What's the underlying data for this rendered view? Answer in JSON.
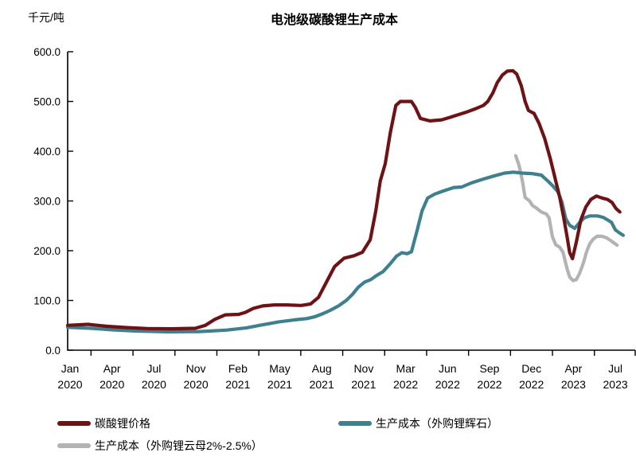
{
  "chart_data": {
    "type": "line",
    "title": "电池级碳酸锂生产成本",
    "ylabel": "千元/吨",
    "xlabel": "",
    "ylim": [
      0,
      600
    ],
    "y_ticks": [
      0,
      100,
      200,
      300,
      400,
      500,
      600
    ],
    "grid": false,
    "legend_position": "bottom",
    "x_ticks": [
      {
        "month": "Jan",
        "year": "2020"
      },
      {
        "month": "Apr",
        "year": "2020"
      },
      {
        "month": "Jul",
        "year": "2020"
      },
      {
        "month": "Nov",
        "year": "2020"
      },
      {
        "month": "Feb",
        "year": "2021"
      },
      {
        "month": "May",
        "year": "2021"
      },
      {
        "month": "Aug",
        "year": "2021"
      },
      {
        "month": "Nov",
        "year": "2021"
      },
      {
        "month": "Mar",
        "year": "2022"
      },
      {
        "month": "Jun",
        "year": "2022"
      },
      {
        "month": "Sep",
        "year": "2022"
      },
      {
        "month": "Dec",
        "year": "2022"
      },
      {
        "month": "Apr",
        "year": "2023"
      },
      {
        "month": "Jul",
        "year": "2023"
      }
    ],
    "points_format": "[x_percent_along_time_axis_Jan2020_to_Jul2023, value_kCNY_per_ton]",
    "series": [
      {
        "name": "碳酸锂价格",
        "color": "#6E1315",
        "points": [
          [
            0,
            50
          ],
          [
            3.6,
            52
          ],
          [
            7.1,
            48
          ],
          [
            10.7,
            45.5
          ],
          [
            14.3,
            43.5
          ],
          [
            18.6,
            43
          ],
          [
            22.9,
            44
          ],
          [
            24.7,
            50
          ],
          [
            26.4,
            62
          ],
          [
            28.3,
            71
          ],
          [
            30.7,
            72
          ],
          [
            31.9,
            76
          ],
          [
            33.3,
            84
          ],
          [
            35,
            89
          ],
          [
            37.1,
            91
          ],
          [
            39.3,
            91
          ],
          [
            41.9,
            90
          ],
          [
            43.6,
            93
          ],
          [
            45,
            106
          ],
          [
            46.4,
            136
          ],
          [
            47.9,
            168
          ],
          [
            49.6,
            185
          ],
          [
            51.4,
            190
          ],
          [
            52.9,
            197
          ],
          [
            54.3,
            222
          ],
          [
            55.3,
            280
          ],
          [
            56.1,
            340
          ],
          [
            57,
            375
          ],
          [
            57.9,
            437
          ],
          [
            58.9,
            492
          ],
          [
            59.7,
            500
          ],
          [
            61.7,
            500
          ],
          [
            62.4,
            488
          ],
          [
            63.3,
            466
          ],
          [
            65,
            461
          ],
          [
            67.1,
            463
          ],
          [
            68.6,
            468
          ],
          [
            69.7,
            472
          ],
          [
            71.4,
            478
          ],
          [
            73.1,
            485
          ],
          [
            74.6,
            492
          ],
          [
            75.4,
            500
          ],
          [
            76.3,
            517
          ],
          [
            77.1,
            538
          ],
          [
            78,
            553
          ],
          [
            78.9,
            561
          ],
          [
            79.9,
            562
          ],
          [
            80.6,
            555
          ],
          [
            81.4,
            532
          ],
          [
            82.1,
            500
          ],
          [
            82.7,
            482
          ],
          [
            83.7,
            476
          ],
          [
            84.6,
            456
          ],
          [
            85.6,
            426
          ],
          [
            86.6,
            386
          ],
          [
            87.6,
            340
          ],
          [
            88.3,
            308
          ],
          [
            89,
            268
          ],
          [
            89.6,
            230
          ],
          [
            90.1,
            196
          ],
          [
            90.6,
            184
          ],
          [
            91.3,
            218
          ],
          [
            92.1,
            262
          ],
          [
            93,
            288
          ],
          [
            93.9,
            303
          ],
          [
            94.9,
            310
          ],
          [
            95.9,
            306
          ],
          [
            96.9,
            303
          ],
          [
            97.7,
            297
          ],
          [
            98.4,
            285
          ],
          [
            99.1,
            278
          ]
        ]
      },
      {
        "name": "生产成本（外购锂辉石）",
        "color": "#3F808F",
        "points": [
          [
            0,
            46
          ],
          [
            4.3,
            44
          ],
          [
            7.9,
            41
          ],
          [
            12.1,
            38.5
          ],
          [
            17.9,
            37
          ],
          [
            23.6,
            37.5
          ],
          [
            25.7,
            38.5
          ],
          [
            28.6,
            40.5
          ],
          [
            32.1,
            45
          ],
          [
            35,
            51
          ],
          [
            37.9,
            57
          ],
          [
            40.7,
            61
          ],
          [
            42.9,
            63.5
          ],
          [
            44.3,
            67
          ],
          [
            45.7,
            73
          ],
          [
            47.1,
            80
          ],
          [
            48.6,
            89
          ],
          [
            50,
            100
          ],
          [
            51.1,
            112
          ],
          [
            52.1,
            126
          ],
          [
            53.3,
            137
          ],
          [
            54.4,
            142
          ],
          [
            55.4,
            150
          ],
          [
            56.6,
            158
          ],
          [
            57.9,
            174
          ],
          [
            59,
            189
          ],
          [
            60,
            196
          ],
          [
            60.9,
            194
          ],
          [
            61.7,
            198
          ],
          [
            62.7,
            240
          ],
          [
            63.6,
            280
          ],
          [
            64.6,
            306
          ],
          [
            65.9,
            314
          ],
          [
            67.4,
            320
          ],
          [
            69.3,
            327
          ],
          [
            70.7,
            328
          ],
          [
            72.4,
            336
          ],
          [
            74.3,
            343
          ],
          [
            76.4,
            350
          ],
          [
            78.4,
            356
          ],
          [
            80,
            358
          ],
          [
            81.6,
            356
          ],
          [
            83.3,
            355
          ],
          [
            85,
            352
          ],
          [
            86.1,
            341
          ],
          [
            87.1,
            330
          ],
          [
            88,
            318
          ],
          [
            88.7,
            298
          ],
          [
            89.4,
            264
          ],
          [
            90.1,
            251
          ],
          [
            91,
            245
          ],
          [
            91.9,
            257
          ],
          [
            92.7,
            266
          ],
          [
            93.7,
            270
          ],
          [
            95.1,
            270
          ],
          [
            96.1,
            267
          ],
          [
            96.9,
            262
          ],
          [
            97.6,
            257
          ],
          [
            98.3,
            242
          ],
          [
            99,
            236
          ],
          [
            99.7,
            231
          ]
        ]
      },
      {
        "name": "生产成本（外购锂云母2%-2.5%）",
        "color": "#B3B3B3",
        "points": [
          [
            80.4,
            391
          ],
          [
            81,
            372
          ],
          [
            81.6,
            341
          ],
          [
            82.1,
            307
          ],
          [
            82.9,
            300
          ],
          [
            83.4,
            291
          ],
          [
            84.1,
            286
          ],
          [
            85,
            278
          ],
          [
            85.9,
            274
          ],
          [
            86.4,
            266
          ],
          [
            87,
            228
          ],
          [
            87.6,
            212
          ],
          [
            88.3,
            207
          ],
          [
            88.9,
            197
          ],
          [
            89.6,
            165
          ],
          [
            90.1,
            147
          ],
          [
            90.7,
            140
          ],
          [
            91.3,
            142
          ],
          [
            91.9,
            155
          ],
          [
            92.6,
            177
          ],
          [
            93.1,
            197
          ],
          [
            93.7,
            214
          ],
          [
            94.3,
            223
          ],
          [
            95,
            229
          ],
          [
            95.9,
            229
          ],
          [
            96.7,
            226
          ],
          [
            97.4,
            221
          ],
          [
            98,
            216
          ],
          [
            98.6,
            211
          ]
        ]
      }
    ]
  }
}
